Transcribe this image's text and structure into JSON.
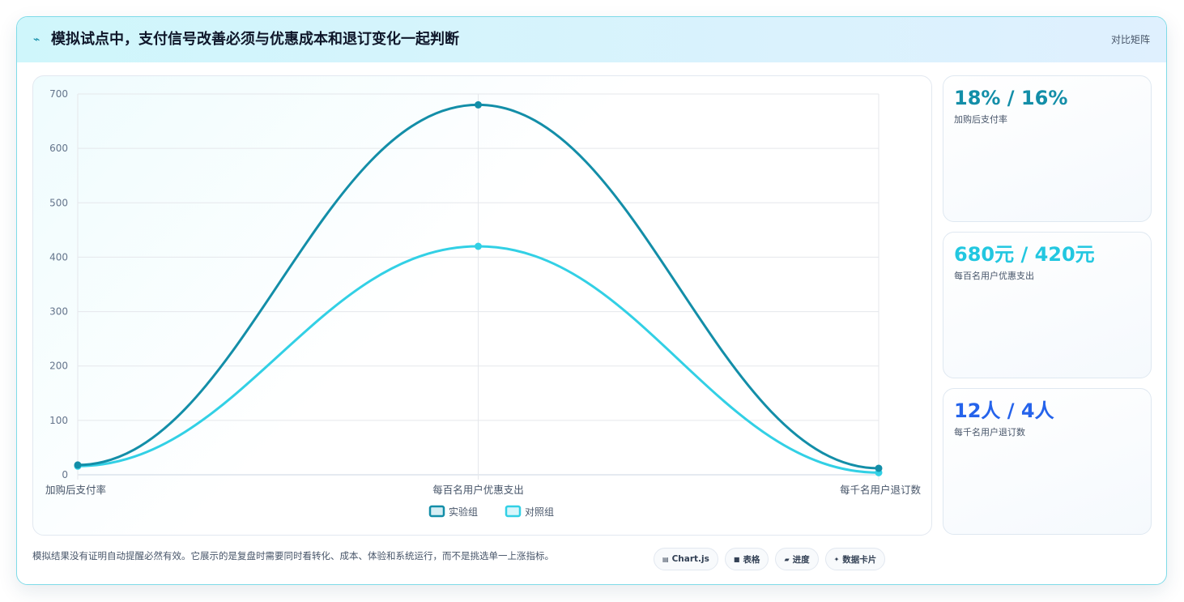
{
  "header": {
    "title": "模拟试点中，支付信号改善必须与优惠成本和退订变化一起判断",
    "link": "对比矩阵"
  },
  "colors": {
    "experiment": "#138ea8",
    "control": "#32d0e5",
    "stat1": "#138ea8",
    "stat2": "#22c7e0",
    "stat3": "#2563eb"
  },
  "chart_data": {
    "type": "line",
    "categories": [
      "加购后支付率",
      "每百名用户优惠支出",
      "每千名用户退订数"
    ],
    "series": [
      {
        "name": "实验组",
        "values": [
          18,
          680,
          12
        ]
      },
      {
        "name": "对照组",
        "values": [
          16,
          420,
          4
        ]
      }
    ],
    "y_ticks": [
      "0",
      "100",
      "200",
      "300",
      "400",
      "500",
      "600",
      "700"
    ],
    "ylim": [
      0,
      700
    ],
    "grid": true,
    "legend": "bottom"
  },
  "stats": [
    {
      "value": "18% / 16%",
      "label": "加购后支付率"
    },
    {
      "value": "680元 / 420元",
      "label": "每百名用户优惠支出"
    },
    {
      "value": "12人 / 4人",
      "label": "每千名用户退订数"
    }
  ],
  "footer": {
    "note": "模拟结果没有证明自动提醒必然有效。它展示的是复盘时需要同时看转化、成本、体验和系统运行，而不是挑选单一上涨指标。",
    "chips": [
      {
        "icon": "chart-icon",
        "label": "Chart.js"
      },
      {
        "icon": "table-icon",
        "label": "表格"
      },
      {
        "icon": "progress-icon",
        "label": "进度"
      },
      {
        "icon": "sparkle-icon",
        "label": "数据卡片"
      }
    ]
  }
}
